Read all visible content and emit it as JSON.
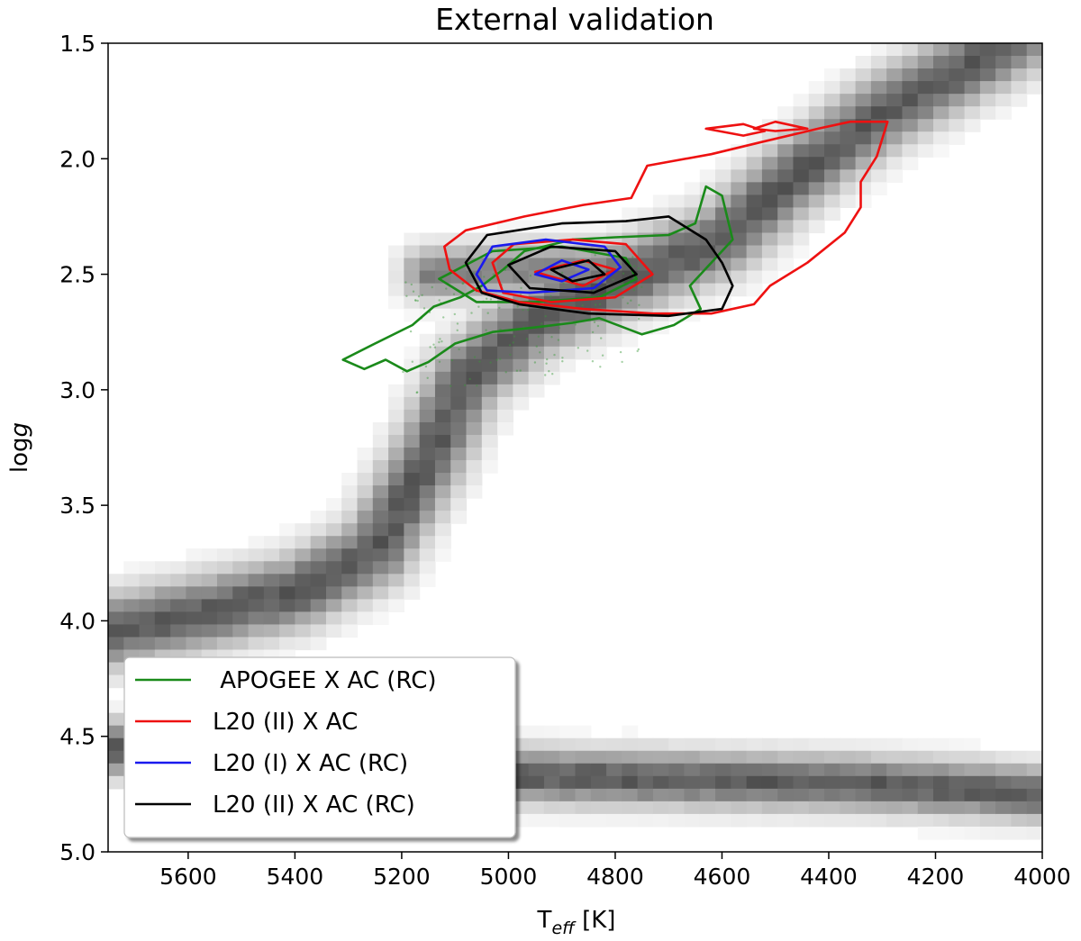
{
  "chart_data": {
    "type": "contour-density",
    "title": "External validation",
    "xlabel_base": "T",
    "xlabel_sub": "eff",
    "xlabel_unit": " [K]",
    "ylabel_prefix": "log",
    "ylabel_italic": "g",
    "xlim": [
      5750,
      4000
    ],
    "ylim": [
      5.0,
      1.5
    ],
    "x_inverted": true,
    "y_inverted": true,
    "x_ticks": [
      5600,
      5400,
      5200,
      5000,
      4800,
      4600,
      4400,
      4200,
      4000
    ],
    "y_ticks": [
      1.5,
      2.0,
      2.5,
      3.0,
      3.5,
      4.0,
      4.5,
      5.0
    ],
    "y_tick_labels": [
      "1.5",
      "2.0",
      "2.5",
      "3.0",
      "3.5",
      "4.0",
      "4.5",
      "5.0"
    ],
    "legend_position": "lower-left",
    "background_density": {
      "description_bands": [
        {
          "name": "giant branch",
          "points": [
            [
              5750,
              4.05
            ],
            [
              5600,
              3.98
            ],
            [
              5400,
              3.88
            ],
            [
              5250,
              3.7
            ],
            [
              5150,
              3.3
            ],
            [
              5080,
              2.95
            ],
            [
              4950,
              2.7
            ],
            [
              4780,
              2.52
            ],
            [
              4600,
              2.35
            ],
            [
              4450,
              2.05
            ],
            [
              4300,
              1.8
            ],
            [
              4100,
              1.55
            ],
            [
              4000,
              1.4
            ]
          ],
          "halfwidth": 0.16,
          "peak": 0.72
        },
        {
          "name": "clump extension",
          "points": [
            [
              5150,
              2.5
            ],
            [
              5000,
              2.48
            ],
            [
              4850,
              2.48
            ],
            [
              4700,
              2.45
            ]
          ],
          "halfwidth": 0.12,
          "peak": 0.55
        },
        {
          "name": "main sequence",
          "points": [
            [
              5750,
              4.55
            ],
            [
              5600,
              4.58
            ],
            [
              5400,
              4.62
            ],
            [
              5200,
              4.65
            ],
            [
              5000,
              4.67
            ],
            [
              4800,
              4.68
            ],
            [
              4600,
              4.69
            ],
            [
              4400,
              4.7
            ],
            [
              4200,
              4.72
            ],
            [
              4000,
              4.75
            ]
          ],
          "halfwidth": 0.12,
          "peak": 0.72
        }
      ]
    },
    "series": [
      {
        "name": " APOGEE X AC (RC)",
        "color": "#1a8a1a",
        "contours": [
          [
            [
              5310,
              2.87
            ],
            [
              5250,
              2.8
            ],
            [
              5180,
              2.72
            ],
            [
              5140,
              2.64
            ],
            [
              5090,
              2.6
            ],
            [
              5050,
              2.55
            ],
            [
              5010,
              2.48
            ],
            [
              4970,
              2.4
            ],
            [
              4880,
              2.35
            ],
            [
              4800,
              2.34
            ],
            [
              4700,
              2.33
            ],
            [
              4650,
              2.28
            ],
            [
              4630,
              2.12
            ],
            [
              4600,
              2.16
            ],
            [
              4580,
              2.35
            ],
            [
              4620,
              2.45
            ],
            [
              4660,
              2.55
            ],
            [
              4640,
              2.65
            ],
            [
              4690,
              2.72
            ],
            [
              4750,
              2.76
            ],
            [
              4830,
              2.69
            ],
            [
              4880,
              2.71
            ],
            [
              4950,
              2.73
            ],
            [
              5030,
              2.75
            ],
            [
              5100,
              2.8
            ],
            [
              5150,
              2.88
            ],
            [
              5190,
              2.92
            ],
            [
              5230,
              2.87
            ],
            [
              5270,
              2.91
            ],
            [
              5310,
              2.87
            ]
          ],
          [
            [
              5130,
              2.52
            ],
            [
              5030,
              2.4
            ],
            [
              4900,
              2.38
            ],
            [
              4780,
              2.43
            ],
            [
              4760,
              2.52
            ],
            [
              4830,
              2.6
            ],
            [
              4950,
              2.62
            ],
            [
              5060,
              2.62
            ],
            [
              5130,
              2.52
            ]
          ]
        ]
      },
      {
        "name": "L20 (II) X AC",
        "color": "#ee1111",
        "contours": [
          [
            [
              5120,
              2.38
            ],
            [
              5080,
              2.31
            ],
            [
              4970,
              2.25
            ],
            [
              4860,
              2.2
            ],
            [
              4770,
              2.17
            ],
            [
              4740,
              2.03
            ],
            [
              4620,
              1.98
            ],
            [
              4530,
              1.93
            ],
            [
              4420,
              1.87
            ],
            [
              4360,
              1.84
            ],
            [
              4290,
              1.84
            ],
            [
              4310,
              1.99
            ],
            [
              4340,
              2.1
            ],
            [
              4340,
              2.21
            ],
            [
              4370,
              2.32
            ],
            [
              4440,
              2.45
            ],
            [
              4510,
              2.55
            ],
            [
              4540,
              2.63
            ],
            [
              4620,
              2.67
            ],
            [
              4730,
              2.67
            ],
            [
              4860,
              2.65
            ],
            [
              4980,
              2.62
            ],
            [
              5060,
              2.57
            ],
            [
              5110,
              2.48
            ],
            [
              5120,
              2.38
            ]
          ],
          [
            [
              5030,
              2.45
            ],
            [
              4990,
              2.37
            ],
            [
              4880,
              2.35
            ],
            [
              4780,
              2.37
            ],
            [
              4730,
              2.5
            ],
            [
              4800,
              2.6
            ],
            [
              4920,
              2.62
            ],
            [
              5010,
              2.58
            ],
            [
              5030,
              2.45
            ]
          ],
          [
            [
              4950,
              2.49
            ],
            [
              4860,
              2.44
            ],
            [
              4800,
              2.48
            ],
            [
              4860,
              2.55
            ],
            [
              4950,
              2.49
            ]
          ],
          [
            [
              4540,
              1.87
            ],
            [
              4500,
              1.84
            ],
            [
              4440,
              1.87
            ],
            [
              4500,
              1.88
            ],
            [
              4540,
              1.87
            ]
          ],
          [
            [
              4630,
              1.87
            ],
            [
              4560,
              1.85
            ],
            [
              4520,
              1.88
            ],
            [
              4560,
              1.9
            ],
            [
              4630,
              1.87
            ]
          ]
        ]
      },
      {
        "name": "L20 (I) X AC (RC)",
        "color": "#1a1aee",
        "contours": [
          [
            [
              5060,
              2.5
            ],
            [
              5030,
              2.38
            ],
            [
              4930,
              2.35
            ],
            [
              4820,
              2.38
            ],
            [
              4790,
              2.47
            ],
            [
              4840,
              2.56
            ],
            [
              4960,
              2.58
            ],
            [
              5040,
              2.57
            ],
            [
              5060,
              2.5
            ]
          ],
          [
            [
              4950,
              2.5
            ],
            [
              4900,
              2.44
            ],
            [
              4850,
              2.48
            ],
            [
              4900,
              2.53
            ],
            [
              4950,
              2.5
            ]
          ]
        ]
      },
      {
        "name": "L20 (II) X AC (RC)",
        "color": "#000000",
        "contours": [
          [
            [
              5080,
              2.45
            ],
            [
              5040,
              2.33
            ],
            [
              4900,
              2.28
            ],
            [
              4780,
              2.27
            ],
            [
              4700,
              2.25
            ],
            [
              4630,
              2.35
            ],
            [
              4600,
              2.45
            ],
            [
              4580,
              2.55
            ],
            [
              4600,
              2.65
            ],
            [
              4700,
              2.68
            ],
            [
              4850,
              2.67
            ],
            [
              4980,
              2.63
            ],
            [
              5050,
              2.58
            ],
            [
              5080,
              2.45
            ]
          ],
          [
            [
              5000,
              2.46
            ],
            [
              4920,
              2.38
            ],
            [
              4800,
              2.4
            ],
            [
              4760,
              2.5
            ],
            [
              4840,
              2.58
            ],
            [
              4960,
              2.56
            ],
            [
              5000,
              2.46
            ]
          ],
          [
            [
              4920,
              2.48
            ],
            [
              4850,
              2.44
            ],
            [
              4820,
              2.5
            ],
            [
              4880,
              2.53
            ],
            [
              4920,
              2.48
            ]
          ]
        ]
      }
    ]
  }
}
